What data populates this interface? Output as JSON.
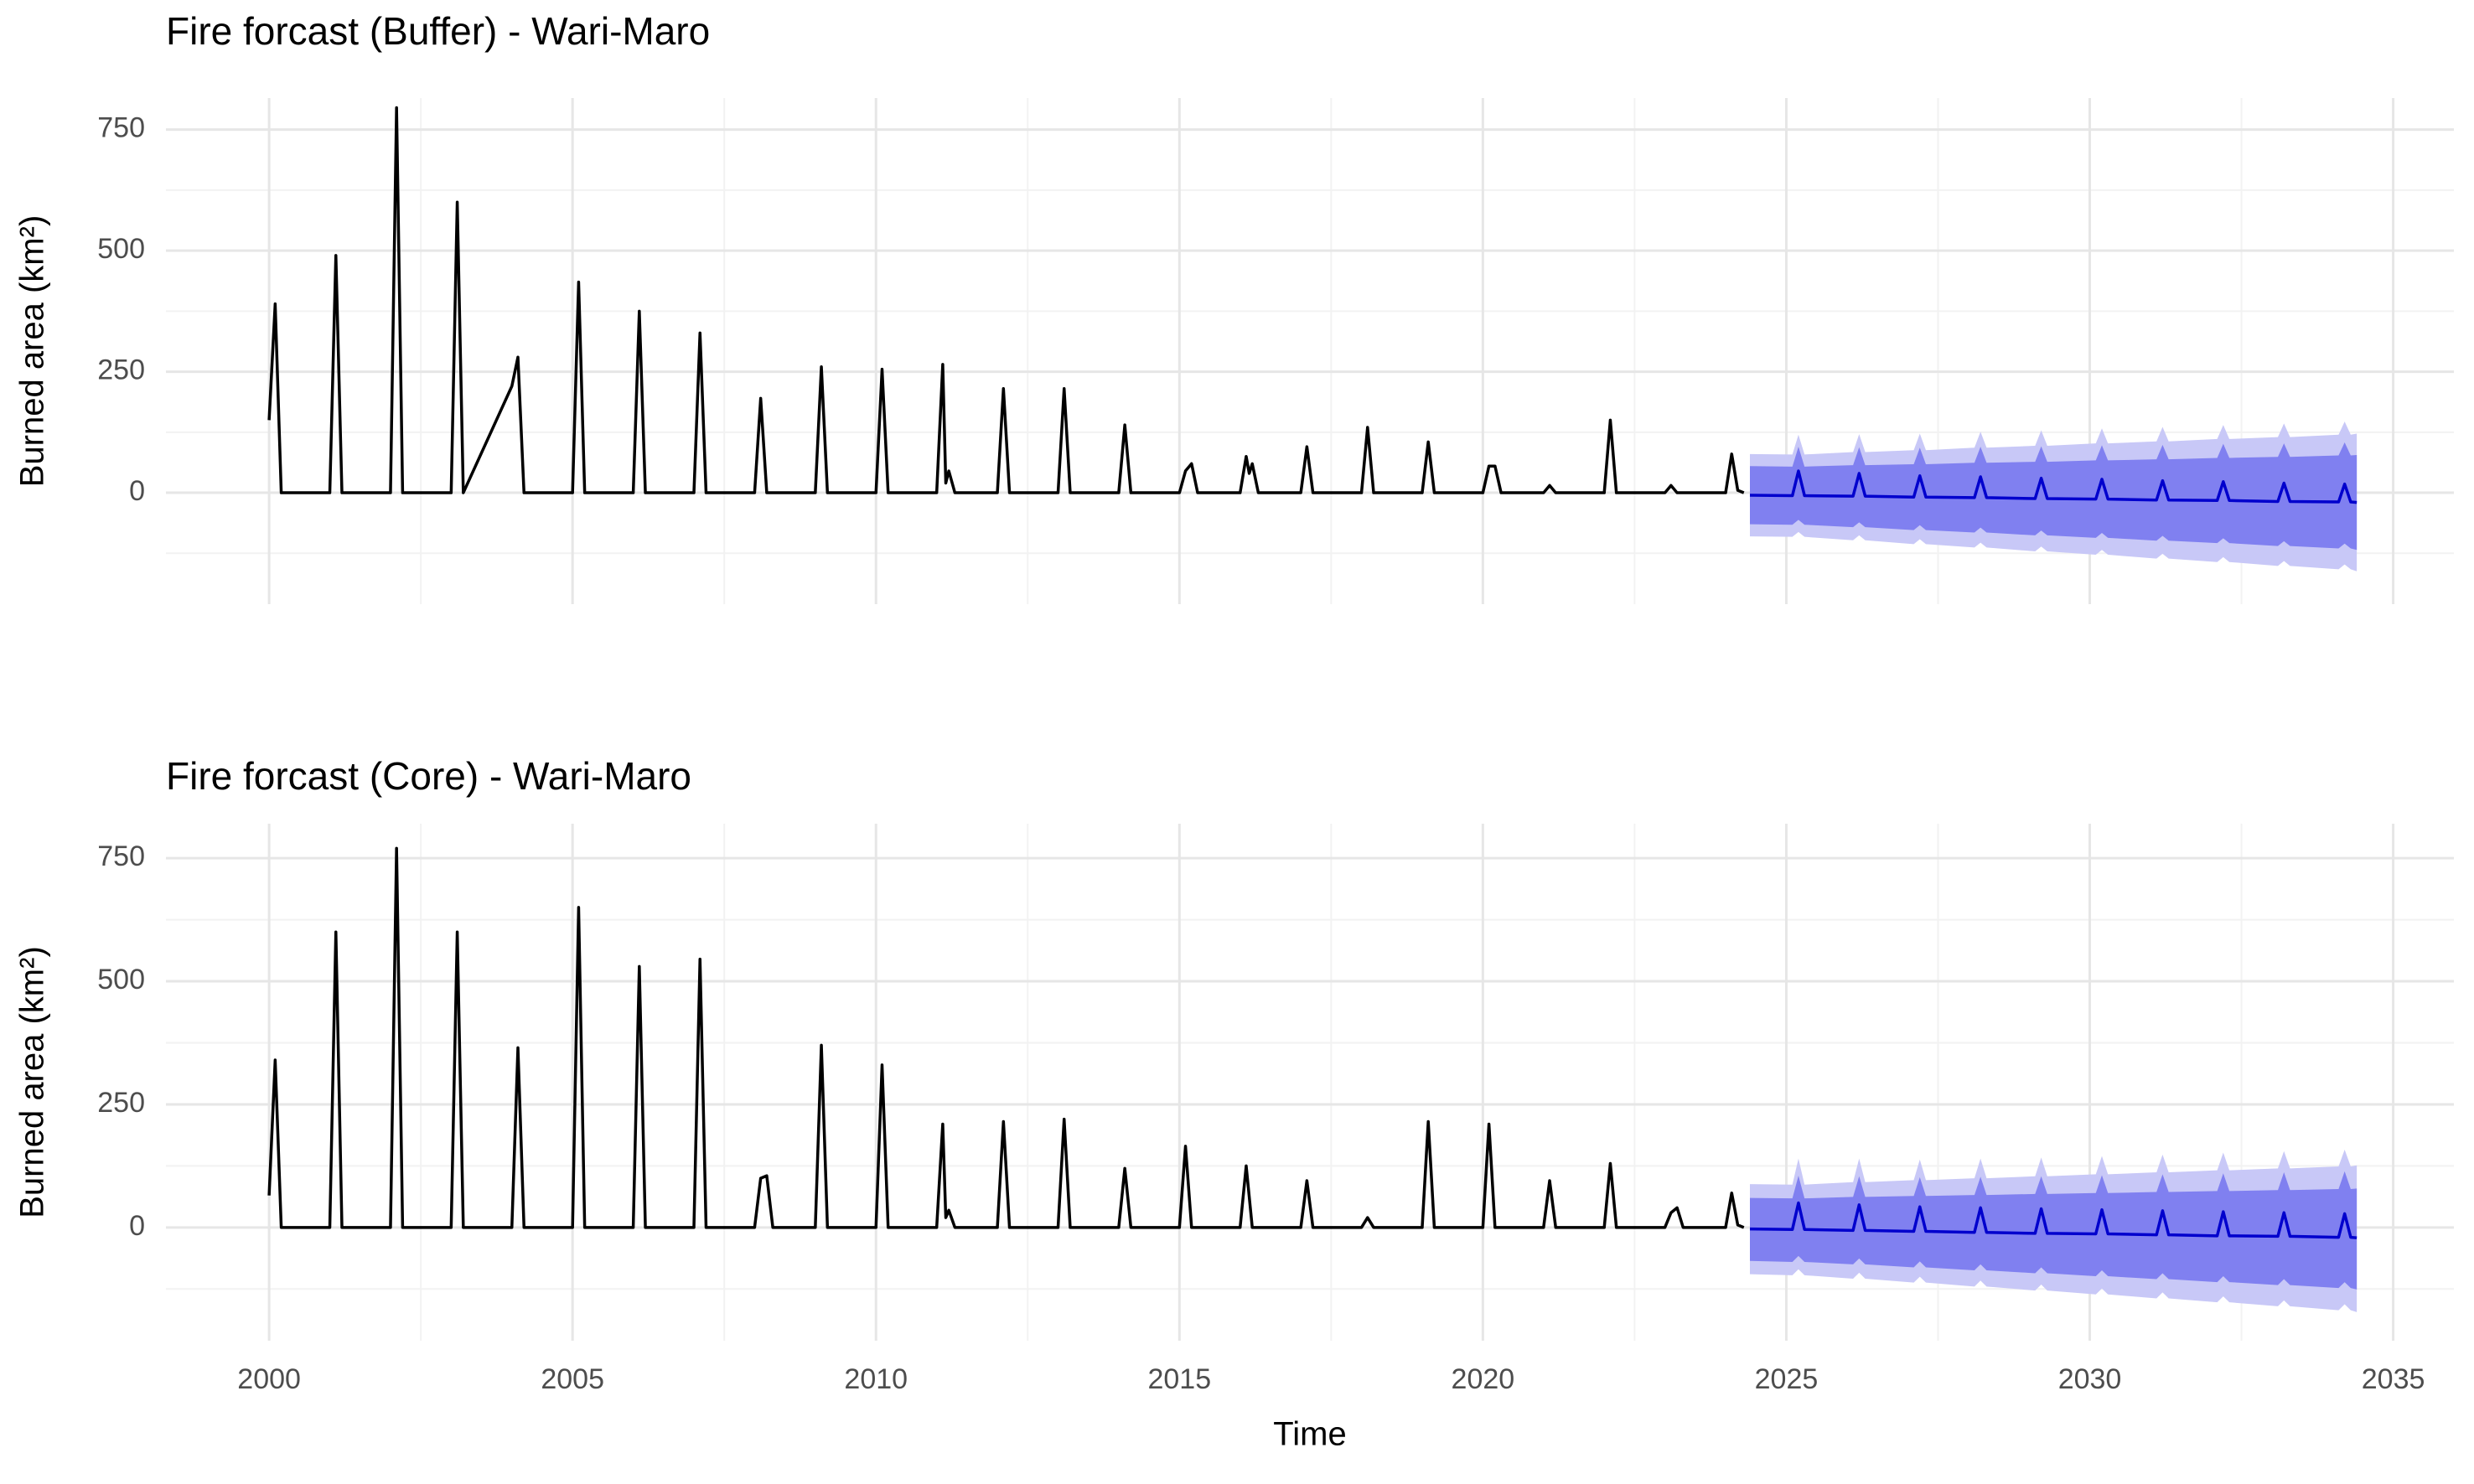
{
  "chart_data": [
    {
      "type": "line",
      "title": "Fire forcast (Buffer) - Wari-Maro",
      "ylabel": "Burned area (km²)",
      "xlim": [
        1998.3,
        2036
      ],
      "ylim": [
        -230,
        815
      ],
      "xticks": [
        2000,
        2005,
        2010,
        2015,
        2020,
        2025,
        2030,
        2035
      ],
      "xtick_labels": false,
      "yticks": [
        0,
        250,
        500,
        750
      ],
      "minor_xticks": [
        2002.5,
        2007.5,
        2012.5,
        2017.5,
        2022.5,
        2027.5,
        2032.5
      ],
      "minor_yticks": [
        -125,
        125,
        375,
        625
      ],
      "grid": true,
      "series": [
        {
          "color": "#000000",
          "x": [
            2000.0,
            2000.1,
            2000.2,
            2001.0,
            2001.1,
            2001.2,
            2002.0,
            2002.1,
            2002.2,
            2003.0,
            2003.1,
            2003.2,
            2004.0,
            2004.1,
            2004.2,
            2005.0,
            2005.1,
            2005.2,
            2006.0,
            2006.1,
            2006.2,
            2007.0,
            2007.1,
            2007.2,
            2008.0,
            2008.1,
            2008.2,
            2009.0,
            2009.1,
            2009.2,
            2010.0,
            2010.1,
            2010.2,
            2011.0,
            2011.1,
            2011.15,
            2011.2,
            2011.3,
            2012.0,
            2012.1,
            2012.2,
            2013.0,
            2013.1,
            2013.2,
            2014.0,
            2014.1,
            2014.2,
            2015.0,
            2015.1,
            2015.2,
            2015.3,
            2016.0,
            2016.1,
            2016.15,
            2016.2,
            2016.3,
            2017.0,
            2017.1,
            2017.2,
            2018.0,
            2018.1,
            2018.2,
            2019.0,
            2019.1,
            2019.2,
            2020.0,
            2020.1,
            2020.2,
            2020.3,
            2021.0,
            2021.1,
            2021.2,
            2022.0,
            2022.1,
            2022.2,
            2023.0,
            2023.1,
            2023.2,
            2024.0,
            2024.1,
            2024.2,
            2024.3
          ],
          "values": [
            150,
            390,
            0,
            0,
            490,
            0,
            0,
            795,
            0,
            0,
            600,
            0,
            220,
            280,
            0,
            0,
            435,
            0,
            0,
            375,
            0,
            0,
            330,
            0,
            0,
            195,
            0,
            0,
            260,
            0,
            0,
            255,
            0,
            0,
            265,
            20,
            45,
            0,
            0,
            215,
            0,
            0,
            215,
            0,
            0,
            140,
            0,
            0,
            45,
            60,
            0,
            0,
            75,
            40,
            60,
            0,
            0,
            95,
            0,
            0,
            135,
            0,
            0,
            105,
            0,
            0,
            55,
            55,
            0,
            0,
            15,
            0,
            0,
            150,
            0,
            0,
            15,
            0,
            0,
            80,
            5,
            0
          ]
        },
        {
          "color": "#c8c8f7",
          "x": [
            2024.4,
            2025.1,
            2025.2,
            2025.3,
            2026.1,
            2026.2,
            2026.3,
            2027.1,
            2027.2,
            2027.3,
            2028.1,
            2028.2,
            2028.3,
            2029.1,
            2029.2,
            2029.3,
            2030.1,
            2030.2,
            2030.3,
            2031.1,
            2031.2,
            2031.3,
            2032.1,
            2032.2,
            2032.3,
            2033.1,
            2033.2,
            2033.3,
            2034.1,
            2034.2,
            2034.3,
            2034.4
          ],
          "upper": [
            80,
            79,
            120,
            79,
            84,
            121,
            84,
            88,
            122,
            88,
            93,
            126,
            93,
            97,
            129,
            97,
            102,
            133,
            102,
            106,
            136,
            106,
            111,
            140,
            111,
            115,
            143,
            115,
            120,
            147,
            120,
            122
          ],
          "lower": [
            -90,
            -91,
            -81,
            -91,
            -98,
            -88,
            -98,
            -106,
            -96,
            -106,
            -113,
            -103,
            -113,
            -121,
            -111,
            -121,
            -128,
            -118,
            -128,
            -136,
            -126,
            -136,
            -143,
            -133,
            -143,
            -151,
            -141,
            -151,
            -158,
            -148,
            -158,
            -162
          ]
        },
        {
          "color": "#8080f0",
          "x": [
            2024.4,
            2025.1,
            2025.2,
            2025.3,
            2026.1,
            2026.2,
            2026.3,
            2027.1,
            2027.2,
            2027.3,
            2028.1,
            2028.2,
            2028.3,
            2029.1,
            2029.2,
            2029.3,
            2030.1,
            2030.2,
            2030.3,
            2031.1,
            2031.2,
            2031.3,
            2032.1,
            2032.2,
            2032.3,
            2033.1,
            2033.2,
            2033.3,
            2034.1,
            2034.2,
            2034.3,
            2034.4
          ],
          "upper": [
            55,
            54,
            95,
            54,
            57,
            94,
            57,
            59,
            93,
            59,
            62,
            95,
            62,
            64,
            96,
            64,
            67,
            98,
            67,
            69,
            99,
            69,
            72,
            101,
            72,
            74,
            102,
            74,
            77,
            104,
            77,
            78
          ],
          "lower": [
            -65,
            -66,
            -56,
            -66,
            -71,
            -61,
            -71,
            -77,
            -67,
            -77,
            -82,
            -72,
            -82,
            -88,
            -78,
            -88,
            -93,
            -83,
            -93,
            -99,
            -89,
            -99,
            -104,
            -94,
            -104,
            -110,
            -100,
            -110,
            -115,
            -105,
            -115,
            -118
          ]
        },
        {
          "color": "#0000cd",
          "x": [
            2024.4,
            2025.1,
            2025.2,
            2025.3,
            2026.1,
            2026.2,
            2026.3,
            2027.1,
            2027.2,
            2027.3,
            2028.1,
            2028.2,
            2028.3,
            2029.1,
            2029.2,
            2029.3,
            2030.1,
            2030.2,
            2030.3,
            2031.1,
            2031.2,
            2031.3,
            2032.1,
            2032.2,
            2032.3,
            2033.1,
            2033.2,
            2033.3,
            2034.1,
            2034.2,
            2034.3,
            2034.4
          ],
          "values": [
            -5,
            -6,
            45,
            -6,
            -7,
            40,
            -7,
            -9,
            35,
            -9,
            -10,
            33,
            -10,
            -12,
            30,
            -12,
            -13,
            28,
            -13,
            -15,
            25,
            -15,
            -16,
            23,
            -16,
            -18,
            20,
            -18,
            -19,
            18,
            -19,
            -20
          ]
        }
      ]
    },
    {
      "type": "line",
      "title": "Fire forcast (Core) - Wari-Maro",
      "ylabel": "Burned area (km²)",
      "xlabel": "Time",
      "xlim": [
        1998.3,
        2036
      ],
      "ylim": [
        -230,
        820
      ],
      "xticks": [
        2000,
        2005,
        2010,
        2015,
        2020,
        2025,
        2030,
        2035
      ],
      "xtick_labels": true,
      "yticks": [
        0,
        250,
        500,
        750
      ],
      "minor_xticks": [
        2002.5,
        2007.5,
        2012.5,
        2017.5,
        2022.5,
        2027.5,
        2032.5
      ],
      "minor_yticks": [
        -125,
        125,
        375,
        625
      ],
      "grid": true,
      "series": [
        {
          "color": "#000000",
          "x": [
            2000.0,
            2000.1,
            2000.2,
            2001.0,
            2001.1,
            2001.2,
            2002.0,
            2002.1,
            2002.2,
            2003.0,
            2003.1,
            2003.2,
            2004.0,
            2004.1,
            2004.2,
            2005.0,
            2005.1,
            2005.2,
            2006.0,
            2006.1,
            2006.2,
            2007.0,
            2007.1,
            2007.2,
            2008.0,
            2008.1,
            2008.2,
            2008.3,
            2009.0,
            2009.1,
            2009.2,
            2010.0,
            2010.1,
            2010.2,
            2011.0,
            2011.1,
            2011.15,
            2011.2,
            2011.3,
            2012.0,
            2012.1,
            2012.2,
            2013.0,
            2013.1,
            2013.2,
            2014.0,
            2014.1,
            2014.2,
            2015.0,
            2015.1,
            2015.2,
            2016.0,
            2016.1,
            2016.2,
            2017.0,
            2017.1,
            2017.2,
            2018.0,
            2018.1,
            2018.2,
            2019.0,
            2019.1,
            2019.2,
            2020.0,
            2020.1,
            2020.2,
            2021.0,
            2021.1,
            2021.2,
            2022.0,
            2022.1,
            2022.2,
            2023.0,
            2023.1,
            2023.2,
            2023.3,
            2024.0,
            2024.1,
            2024.2,
            2024.3
          ],
          "values": [
            65,
            340,
            0,
            0,
            600,
            0,
            0,
            770,
            0,
            0,
            600,
            0,
            0,
            365,
            0,
            0,
            650,
            0,
            0,
            530,
            0,
            0,
            545,
            0,
            0,
            100,
            105,
            0,
            0,
            370,
            0,
            0,
            330,
            0,
            0,
            210,
            20,
            35,
            0,
            0,
            215,
            0,
            0,
            220,
            0,
            0,
            120,
            0,
            0,
            165,
            0,
            0,
            125,
            0,
            0,
            95,
            0,
            0,
            20,
            0,
            0,
            215,
            0,
            0,
            210,
            0,
            0,
            95,
            0,
            0,
            130,
            0,
            0,
            30,
            40,
            0,
            0,
            70,
            5,
            0
          ]
        },
        {
          "color": "#c8c8f7",
          "x": [
            2024.4,
            2025.1,
            2025.2,
            2025.3,
            2026.1,
            2026.2,
            2026.3,
            2027.1,
            2027.2,
            2027.3,
            2028.1,
            2028.2,
            2028.3,
            2029.1,
            2029.2,
            2029.3,
            2030.1,
            2030.2,
            2030.3,
            2031.1,
            2031.2,
            2031.3,
            2032.1,
            2032.2,
            2032.3,
            2033.1,
            2033.2,
            2033.3,
            2034.1,
            2034.2,
            2034.3,
            2034.4
          ],
          "upper": [
            88,
            87,
            140,
            87,
            92,
            140,
            92,
            96,
            138,
            96,
            100,
            140,
            100,
            104,
            142,
            104,
            108,
            145,
            108,
            112,
            148,
            112,
            116,
            152,
            116,
            120,
            155,
            120,
            124,
            158,
            124,
            126
          ],
          "lower": [
            -95,
            -97,
            -85,
            -97,
            -104,
            -92,
            -104,
            -112,
            -100,
            -112,
            -120,
            -108,
            -120,
            -128,
            -116,
            -128,
            -136,
            -124,
            -136,
            -144,
            -132,
            -144,
            -152,
            -140,
            -152,
            -160,
            -148,
            -160,
            -168,
            -156,
            -168,
            -172
          ]
        },
        {
          "color": "#8080f0",
          "x": [
            2024.4,
            2025.1,
            2025.2,
            2025.3,
            2026.1,
            2026.2,
            2026.3,
            2027.1,
            2027.2,
            2027.3,
            2028.1,
            2028.2,
            2028.3,
            2029.1,
            2029.2,
            2029.3,
            2030.1,
            2030.2,
            2030.3,
            2031.1,
            2031.2,
            2031.3,
            2032.1,
            2032.2,
            2032.3,
            2033.1,
            2033.2,
            2033.3,
            2034.1,
            2034.2,
            2034.3,
            2034.4
          ],
          "upper": [
            60,
            59,
            105,
            59,
            62,
            104,
            62,
            64,
            102,
            64,
            66,
            103,
            66,
            68,
            104,
            68,
            70,
            106,
            70,
            72,
            108,
            72,
            74,
            110,
            74,
            76,
            112,
            76,
            78,
            114,
            78,
            79
          ],
          "lower": [
            -68,
            -70,
            -58,
            -70,
            -75,
            -63,
            -75,
            -81,
            -69,
            -81,
            -87,
            -75,
            -87,
            -93,
            -81,
            -93,
            -99,
            -87,
            -99,
            -105,
            -93,
            -105,
            -111,
            -99,
            -111,
            -117,
            -105,
            -117,
            -123,
            -111,
            -123,
            -126
          ]
        },
        {
          "color": "#0000cd",
          "x": [
            2024.4,
            2025.1,
            2025.2,
            2025.3,
            2026.1,
            2026.2,
            2026.3,
            2027.1,
            2027.2,
            2027.3,
            2028.1,
            2028.2,
            2028.3,
            2029.1,
            2029.2,
            2029.3,
            2030.1,
            2030.2,
            2030.3,
            2031.1,
            2031.2,
            2031.3,
            2032.1,
            2032.2,
            2032.3,
            2033.1,
            2033.2,
            2033.3,
            2034.1,
            2034.2,
            2034.3,
            2034.4
          ],
          "values": [
            -3,
            -4,
            50,
            -4,
            -6,
            46,
            -6,
            -8,
            42,
            -8,
            -10,
            40,
            -10,
            -12,
            38,
            -12,
            -13,
            36,
            -13,
            -15,
            34,
            -15,
            -17,
            32,
            -17,
            -18,
            30,
            -18,
            -20,
            28,
            -20,
            -21
          ]
        }
      ]
    }
  ]
}
